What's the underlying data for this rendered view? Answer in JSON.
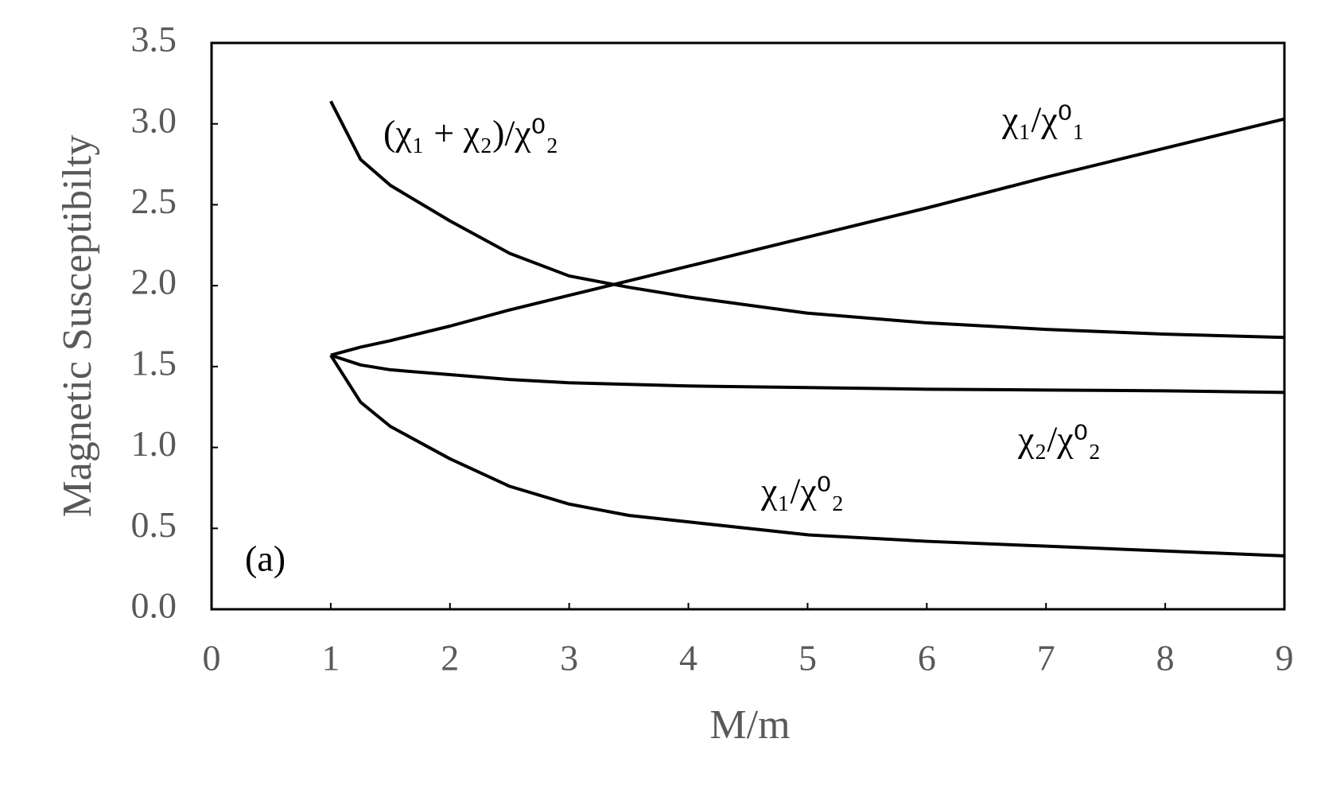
{
  "chart_data": {
    "type": "line",
    "xlabel": "M/m",
    "ylabel": "Magnetic Susceptibilty",
    "x": [
      1,
      1.25,
      1.5,
      2,
      2.5,
      3,
      3.5,
      4,
      5,
      6,
      7,
      8,
      9
    ],
    "series": [
      {
        "name": "χ₁/χ⁰₁",
        "color": "#000000",
        "values": [
          1.57,
          1.62,
          1.66,
          1.75,
          1.85,
          1.94,
          2.03,
          2.12,
          2.3,
          2.48,
          2.67,
          2.85,
          3.03
        ]
      },
      {
        "name": "(χ₁ + χ₂)/χ⁰₂",
        "color": "#000000",
        "values": [
          3.14,
          2.78,
          2.62,
          2.4,
          2.2,
          2.06,
          1.99,
          1.93,
          1.83,
          1.77,
          1.73,
          1.7,
          1.68
        ]
      },
      {
        "name": "χ₂/χ⁰₂",
        "color": "#000000",
        "values": [
          1.57,
          1.51,
          1.48,
          1.45,
          1.42,
          1.4,
          1.39,
          1.38,
          1.37,
          1.36,
          1.355,
          1.35,
          1.34
        ]
      },
      {
        "name": "χ₁/χ⁰₂",
        "color": "#000000",
        "values": [
          1.57,
          1.28,
          1.13,
          0.93,
          0.76,
          0.65,
          0.58,
          0.54,
          0.46,
          0.42,
          0.39,
          0.36,
          0.33
        ]
      }
    ],
    "annotations": [
      "(a)"
    ],
    "xlim": [
      0,
      9
    ],
    "xticks": [
      0,
      1,
      2,
      3,
      4,
      5,
      6,
      7,
      8,
      9
    ],
    "ylim": [
      0,
      3.5
    ],
    "yticks": [
      {
        "value": 0,
        "label": "0.0"
      },
      0.5,
      {
        "value": 1,
        "label": "1.0"
      },
      1.5,
      {
        "value": 2,
        "label": "2.0"
      },
      2.5,
      {
        "value": 3,
        "label": "3.0"
      },
      3.5
    ],
    "grid": false,
    "legend": "inline"
  }
}
